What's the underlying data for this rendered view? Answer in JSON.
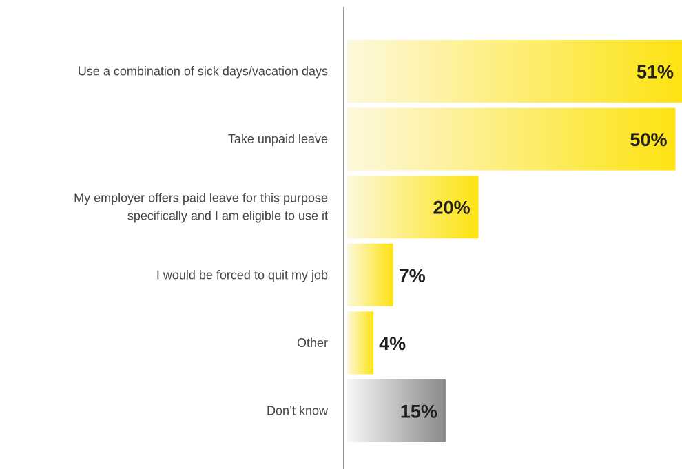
{
  "chart_data": {
    "type": "bar",
    "orientation": "horizontal",
    "categories": [
      [
        "Use a combination of sick days/vacation days"
      ],
      [
        "Take unpaid leave"
      ],
      [
        "My employer offers paid leave for this purpose",
        "specifically and I am eligible to use it"
      ],
      [
        "I would be forced to quit my job"
      ],
      [
        "Other"
      ],
      [
        "Don’t know"
      ]
    ],
    "values": [
      51,
      50,
      20,
      7,
      4,
      15
    ],
    "value_labels": [
      "51%",
      "50%",
      "20%",
      "7%",
      "4%",
      "15%"
    ],
    "unit": "%",
    "xlim": [
      0,
      51
    ],
    "grid": false,
    "legend": "none",
    "colors": {
      "bar_gradient_start": "#fdf8dc",
      "bar_gradient_end": "#fde312",
      "dontknow_gradient_start": "#f7f7f7",
      "dontknow_gradient_end": "#8a8a8c",
      "axis": "#555555",
      "label_text": "#444444",
      "value_text": "#231f20"
    },
    "highlight_categories": [
      5
    ]
  }
}
